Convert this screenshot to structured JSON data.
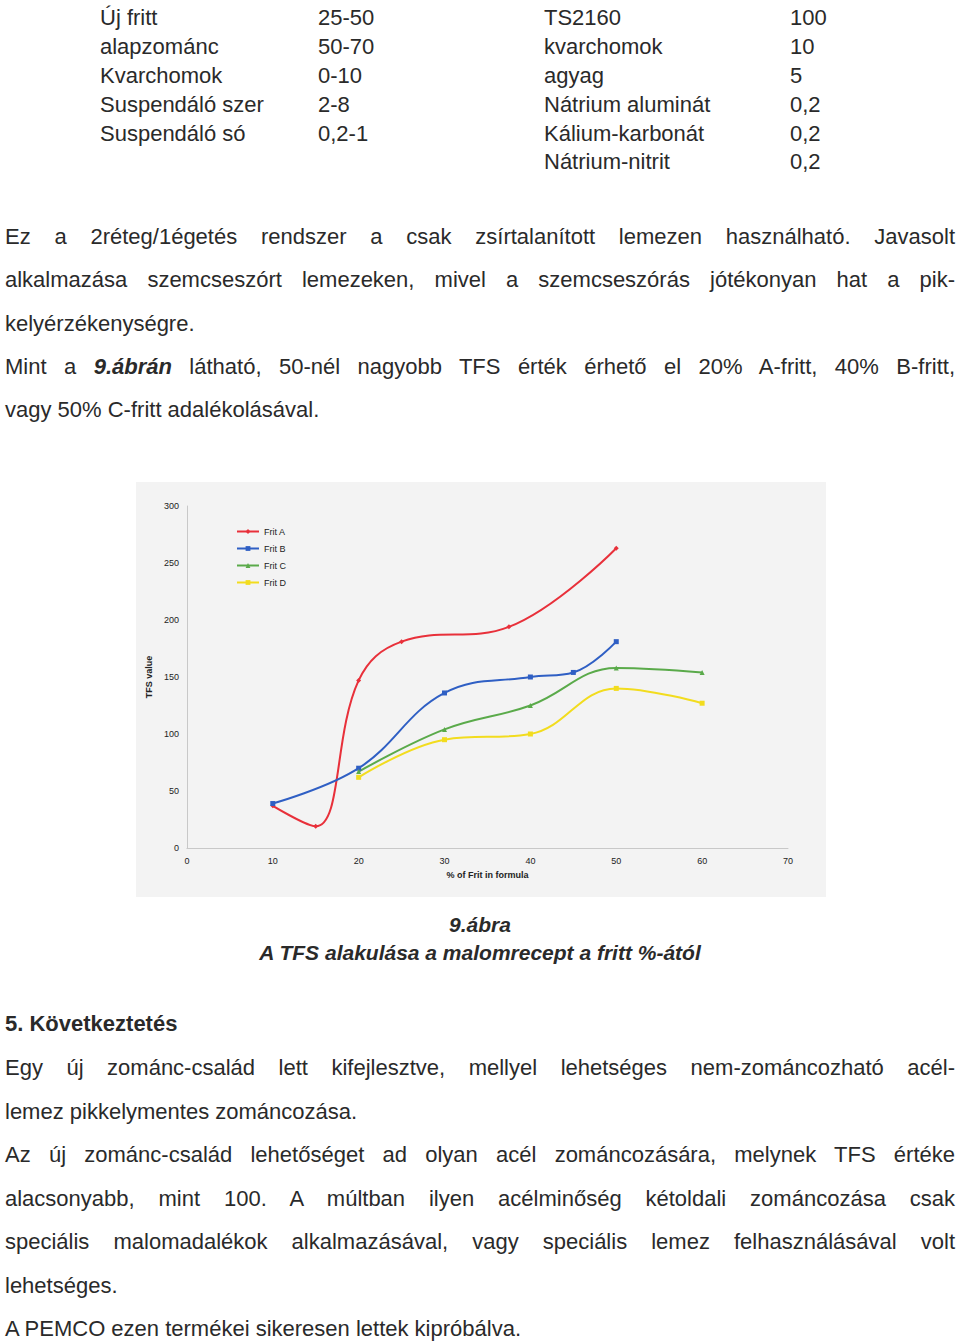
{
  "page": {
    "tables": [
      [
        [
          "Új fritt",
          "25-50"
        ],
        [
          "alapzománc",
          "50-70"
        ],
        [
          "Kvarchomok",
          "0-10"
        ],
        [
          "Suspendáló szer",
          "2-8"
        ],
        [
          "Suspendáló só",
          "0,2-1"
        ]
      ],
      [
        [
          "TS2160",
          "100"
        ],
        [
          "kvarchomok",
          "10"
        ],
        [
          "agyag",
          "5"
        ],
        [
          "Nátrium aluminát",
          "0,2"
        ],
        [
          "Kálium-karbonát",
          "0,2"
        ],
        [
          "Nátrium-nitrit",
          "0,2"
        ]
      ]
    ],
    "intro": [
      [
        [
          {
            "text": "Ez a 2réteg/1égetés rendszer a csak zsírtalanított lemezen használható. Javasolt"
          }
        ],
        [
          {
            "text": "alkalmazása szemcseszórt lemezeken, mivel a szemcseszórás jótékonyan hat a pik-"
          }
        ],
        [
          {
            "text": "kelyérzékenységre."
          }
        ]
      ],
      [
        [
          {
            "text": "Mint a "
          },
          {
            "text": "9.ábrán",
            "emphasis": true
          },
          {
            "text": " látható, 50-nél nagyobb TFS érték érhető el 20% A-fritt, 40% B-fritt,"
          }
        ],
        [
          {
            "text": "vagy 50% C-fritt adalékolásával."
          }
        ]
      ]
    ],
    "caption": [
      "9.ábra",
      "A TFS alakulása a malomrecept a fritt %-ától"
    ],
    "heading": "5. Következtetés",
    "conclusion": [
      [
        [
          {
            "text": "Egy új zománc-család lett kifejlesztve, mellyel lehetséges nem-zománcozható acél-"
          }
        ],
        [
          {
            "text": "lemez pikkelymentes zománcozása."
          }
        ]
      ],
      [
        [
          {
            "text": "Az új zománc-család lehetőséget ad olyan acél zománcozására, melynek TFS értéke"
          }
        ],
        [
          {
            "text": "alacsonyabb, mint 100. A múltban ilyen acélminőség kétoldali zománcozása csak"
          }
        ],
        [
          {
            "text": "speciális malomadalékok alkalmazásával, vagy speciális lemez felhasználásával volt"
          }
        ],
        [
          {
            "text": "lehetséges."
          }
        ]
      ],
      [
        [
          {
            "text": "A PEMCO ezen termékei sikeresen lettek kipróbálva."
          }
        ]
      ]
    ]
  },
  "chart_data": {
    "type": "line",
    "x_label": "% of Frit in formula",
    "y_label": "TFS value",
    "xlim": [
      0,
      70
    ],
    "xticks": [
      0,
      10,
      20,
      30,
      40,
      50,
      60,
      70
    ],
    "ylim": [
      0,
      300
    ],
    "yticks": [
      0,
      50,
      100,
      150,
      200,
      250,
      300
    ],
    "grid": false,
    "legend": "upper left",
    "series": [
      {
        "name": "Frit A",
        "color": "#e8303a",
        "marker": "diamond",
        "line_style": "solid",
        "x": [
          10,
          15,
          20,
          25,
          37.5,
          50
        ],
        "values": [
          37,
          19,
          147,
          181,
          194,
          263
        ]
      },
      {
        "name": "Frit B",
        "color": "#2f5fc4",
        "marker": "square",
        "line_style": "solid",
        "x": [
          10,
          20,
          30,
          40,
          45,
          50
        ],
        "values": [
          39,
          70,
          136,
          150,
          154,
          181
        ]
      },
      {
        "name": "Frit C",
        "color": "#5aaa4a",
        "marker": "triangle",
        "line_style": "solid",
        "x": [
          20,
          30,
          40,
          50,
          60
        ],
        "values": [
          67,
          104,
          125,
          158,
          154
        ]
      },
      {
        "name": "Frit D",
        "color": "#f2dc1e",
        "marker": "square",
        "line_style": "solid",
        "x": [
          20,
          30,
          40,
          50,
          60
        ],
        "values": [
          62,
          95,
          100,
          140,
          127
        ]
      }
    ]
  }
}
